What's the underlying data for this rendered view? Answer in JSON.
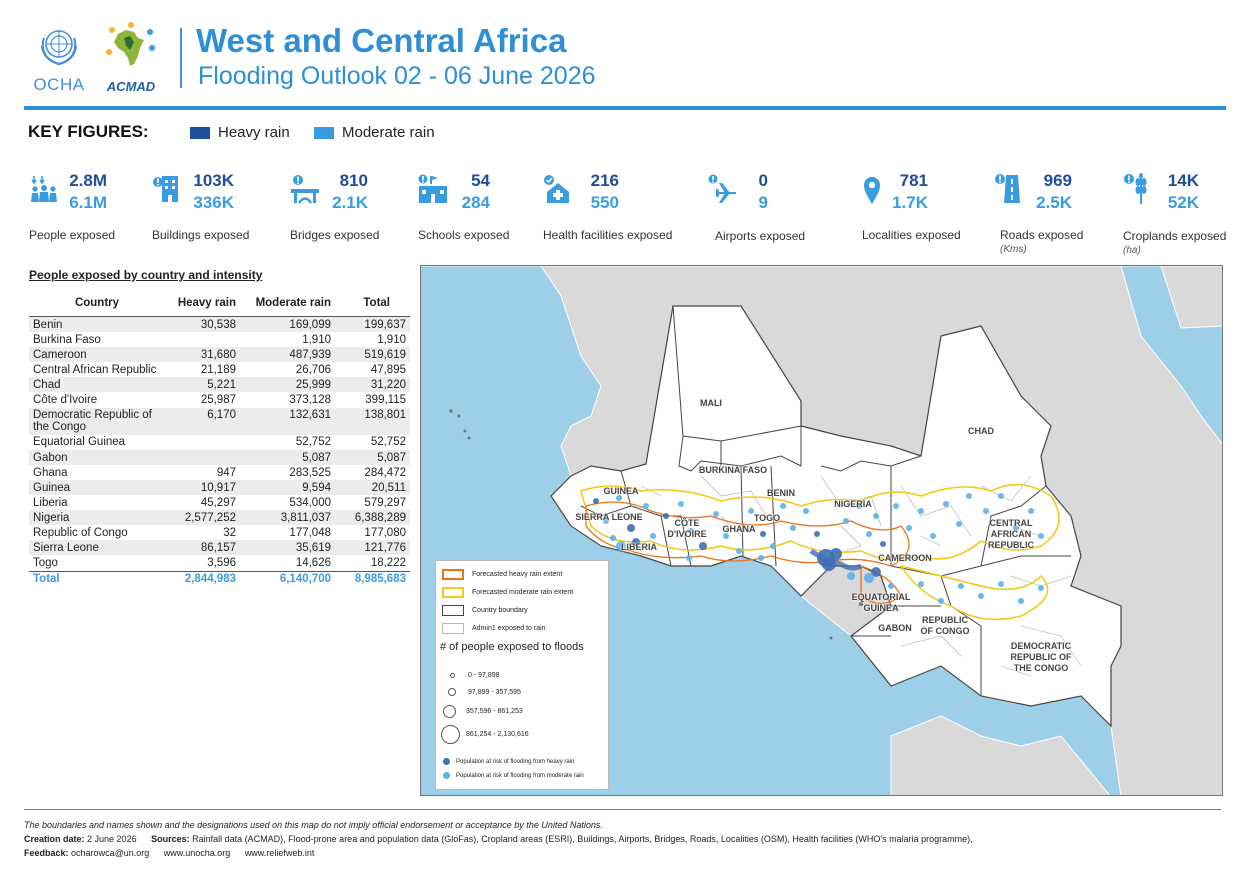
{
  "header": {
    "title": "West and Central Africa",
    "subtitle": "Flooding Outlook 02 - 06 June 2026",
    "logos": [
      {
        "name": "OCHA",
        "text": "OCHA",
        "icon": "un-emblem-icon"
      },
      {
        "name": "ACMAD",
        "text": "ACMAD",
        "icon": "africa-drops-icon"
      }
    ]
  },
  "key_figures": {
    "title": "KEY FIGURES:",
    "legend": [
      {
        "label": "Heavy rain",
        "color": "#1f4e9a"
      },
      {
        "label": "Moderate rain",
        "color": "#3a9ce0"
      }
    ],
    "items": [
      {
        "icon": "people-icon",
        "heavy": "2.8M",
        "moderate": "6.1M",
        "label": "People exposed",
        "unit": ""
      },
      {
        "icon": "buildings-icon",
        "heavy": "103K",
        "moderate": "336K",
        "label": "Buildings exposed",
        "unit": ""
      },
      {
        "icon": "bridge-icon",
        "heavy": "810",
        "moderate": "2.1K",
        "label": "Bridges exposed",
        "unit": ""
      },
      {
        "icon": "school-icon",
        "heavy": "54",
        "moderate": "284",
        "label": "Schools exposed",
        "unit": ""
      },
      {
        "icon": "health-facility-icon",
        "heavy": "216",
        "moderate": "550",
        "label": "Health facilities exposed",
        "unit": ""
      },
      {
        "icon": "airport-icon",
        "heavy": "0",
        "moderate": "9",
        "label": "Airports exposed",
        "unit": ""
      },
      {
        "icon": "location-pin-icon",
        "heavy": "781",
        "moderate": "1.7K",
        "label": "Localities exposed",
        "unit": ""
      },
      {
        "icon": "road-icon",
        "heavy": "969",
        "moderate": "2.5K",
        "label": "Roads exposed",
        "unit": "(Kms)"
      },
      {
        "icon": "crop-icon",
        "heavy": "14K",
        "moderate": "52K",
        "label": "Croplands exposed",
        "unit": "(ha)"
      }
    ]
  },
  "table": {
    "title": "People exposed by country and intensity",
    "headers": [
      "Country",
      "Heavy rain",
      "Moderate rain",
      "Total"
    ],
    "rows": [
      [
        "Benin",
        "30,538",
        "169,099",
        "199,637"
      ],
      [
        "Burkina Faso",
        "",
        "1,910",
        "1,910"
      ],
      [
        "Cameroon",
        "31,680",
        "487,939",
        "519,619"
      ],
      [
        "Central African Republic",
        "21,189",
        "26,706",
        "47,895"
      ],
      [
        "Chad",
        "5,221",
        "25,999",
        "31,220"
      ],
      [
        "Côte d'Ivoire",
        "25,987",
        "373,128",
        "399,115"
      ],
      [
        "Democratic Republic of the Congo",
        "6,170",
        "132,631",
        "138,801"
      ],
      [
        "Equatorial Guinea",
        "",
        "52,752",
        "52,752"
      ],
      [
        "Gabon",
        "",
        "5,087",
        "5,087"
      ],
      [
        "Ghana",
        "947",
        "283,525",
        "284,472"
      ],
      [
        "Guinea",
        "10,917",
        "9,594",
        "20,511"
      ],
      [
        "Liberia",
        "45,297",
        "534,000",
        "579,297"
      ],
      [
        "Nigeria",
        "2,577,252",
        "3,811,037",
        "6,388,289"
      ],
      [
        "Republic of Congo",
        "32",
        "177,048",
        "177,080"
      ],
      [
        "Sierra Leone",
        "86,157",
        "35,619",
        "121,776"
      ],
      [
        "Togo",
        "3,596",
        "14,626",
        "18,222"
      ]
    ],
    "total": [
      "Total",
      "2,844,983",
      "6,140,700",
      "8,985,683"
    ]
  },
  "map": {
    "colors": {
      "ocean": "#9ecfe8",
      "land_other": "#d9d9d9",
      "land_region": "#ffffff",
      "heavy_extent": "#e8731d",
      "moderate_extent": "#f2c80f",
      "heavy_dot": "#3f6fb5",
      "moderate_dot": "#5bb1e8"
    },
    "country_labels": [
      {
        "name": "mali",
        "text": "MALI"
      },
      {
        "name": "chad",
        "text": "CHAD"
      },
      {
        "name": "burkina-faso",
        "text": "BURKINA FASO"
      },
      {
        "name": "guinea",
        "text": "GUINEA"
      },
      {
        "name": "benin",
        "text": "BENIN"
      },
      {
        "name": "nigeria",
        "text": "NIGERIA"
      },
      {
        "name": "sierra-leone",
        "text": "SIERRA LEONE"
      },
      {
        "name": "cote-divoire",
        "text": "CÔTE\nD'IVOIRE"
      },
      {
        "name": "ghana",
        "text": "GHANA"
      },
      {
        "name": "togo",
        "text": "TOGO"
      },
      {
        "name": "liberia",
        "text": "LIBERIA"
      },
      {
        "name": "central-african-republic",
        "text": "CENTRAL\nAFRICAN\nREPUBLIC"
      },
      {
        "name": "cameroon",
        "text": "CAMEROON"
      },
      {
        "name": "equatorial-guinea",
        "text": "EQUATORIAL\nGUINEA"
      },
      {
        "name": "gabon",
        "text": "GABON"
      },
      {
        "name": "republic-of-congo",
        "text": "REPUBLIC\nOF CONGO"
      },
      {
        "name": "drc",
        "text": "DEMOCRATIC\nREPUBLIC OF\nTHE CONGO"
      }
    ],
    "legend": {
      "extent_items": [
        {
          "label": "Forecasted heavy rain extent",
          "style": "heavy"
        },
        {
          "label": "Forecasted moderate rain extent",
          "style": "moderate"
        },
        {
          "label": "Country boundary",
          "style": "country"
        },
        {
          "label": "Admin1 exposed to rain",
          "style": "admin"
        }
      ],
      "size_heading": "# of people exposed to floods",
      "size_classes": [
        "0 - 97,898",
        "97,899 - 357,595",
        "357,596 - 861,253",
        "861,254 - 2,130,616"
      ],
      "dot_items": [
        {
          "label": "Population at risk of flooding from heavy rain",
          "color": "#3f6fb5"
        },
        {
          "label": "Population at risk of flooding from moderate rain",
          "color": "#5bb1e8"
        }
      ]
    }
  },
  "footer": {
    "disclaimer": "The boundaries and names shown and the designations used on this map do not imply official endorsement or acceptance by the United Nations.",
    "creation_label": "Creation date:",
    "creation_value": "2 June 2026",
    "sources_label": "Sources:",
    "sources_value": "Rainfall data (ACMAD), Flood-prone area and population data (GloFas), Cropland areas (ESRI), Buildings, Airports, Bridges, Roads, Localities (OSM), Health facilities (WHO's malaria programme),",
    "feedback_label": "Feedback:",
    "feedback_email": "ocharowca@un.org",
    "link1": "www.unocha.org",
    "link2": "www.reliefweb.int"
  }
}
